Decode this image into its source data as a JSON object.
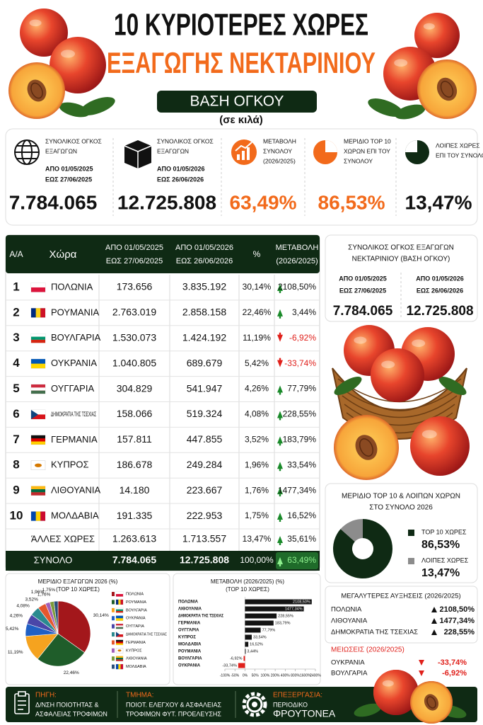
{
  "header": {
    "title_line1": "10 ΚΥΡΙΟΤΕΡΕΣ ΧΩΡΕΣ",
    "title_line2": "ΕΞΑΓΩΓΗΣ ΝΕΚΤΑΡΙΝΙΟΥ",
    "basis": "ΒΑΣΗ ΟΓΚΟΥ",
    "unit": "(σε κιλά)"
  },
  "kpis": [
    {
      "label": [
        "ΣΥΝΟΛΙΚΟΣ ΟΓΚΟΣ",
        "ΕΞΑΓΩΓΩΝ"
      ],
      "period": [
        "ΑΠΟ 01/05/2025",
        "ΕΩΣ 27/06/2025"
      ],
      "value": "7.784.065"
    },
    {
      "label": [
        "ΣΥΝΟΛΙΚΟΣ ΟΓΚΟΣ",
        "ΕΞΑΓΩΓΩΝ"
      ],
      "period": [
        "ΑΠΟ 01/05/2026",
        "ΕΩΣ 26/06/2026"
      ],
      "value": "12.725.808"
    },
    {
      "label": [
        "ΜΕΤΑΒΟΛΗ",
        "ΣΥΝΟΛΟΥ",
        "(2026/2025)"
      ],
      "value": "63,49%"
    },
    {
      "label": [
        "ΜΕΡΙΔΙΟ TOP 10",
        "ΧΩΡΩΝ ΕΠΙ ΤΟΥ",
        "ΣΥΝΟΛΟΥ"
      ],
      "value": "86,53%"
    },
    {
      "label": [
        "ΛΟΙΠΕΣ ΧΩΡΕΣ",
        "ΕΠΙ ΤΟΥ ΣΥΝΟΛΟΥ"
      ],
      "value": "13,47%"
    }
  ],
  "table": {
    "header": [
      "Α/Α",
      "Χώρα",
      [
        "ΑΠΟ 01/05/2025",
        "ΕΩΣ 27/06/2025"
      ],
      [
        "ΑΠΟ 01/05/2026",
        "ΕΩΣ 26/06/2026"
      ],
      "%",
      [
        "ΜΕΤΑΒΟΛΗ",
        "(2026/2025)"
      ]
    ],
    "rows": [
      [
        "1",
        "ΠΟΛΩΝΙΑ",
        "173.656",
        "3.835.192",
        "30,14%",
        "2108,50%"
      ],
      [
        "2",
        "ΡΟΥΜΑΝΙΑ",
        "2.763.019",
        "2.858.158",
        "22,46%",
        "3,44%"
      ],
      [
        "3",
        "ΒΟΥΛΓΑΡΙΑ",
        "1.530.073",
        "1.424.192",
        "11,19%",
        "-6,92%"
      ],
      [
        "4",
        "ΟΥΚΡΑΝΙΑ",
        "1.040.805",
        "689.679",
        "5,42%",
        "-33,74%"
      ],
      [
        "5",
        "ΟΥΓΓΑΡΙΑ",
        "304.829",
        "541.947",
        "4,26%",
        "77,79%"
      ],
      [
        "6",
        "ΔΗΜΟΚΡΑΤΙΑ ΤΗΣ ΤΣΕΧΙΑΣ",
        "158.066",
        "519.324",
        "4,08%",
        "228,55%"
      ],
      [
        "7",
        "ΓΕΡΜΑΝΙΑ",
        "157.811",
        "447.855",
        "3,52%",
        "183,79%"
      ],
      [
        "8",
        "ΚΥΠΡΟΣ",
        "186.678",
        "249.284",
        "1,96%",
        "33,54%"
      ],
      [
        "9",
        "ΛΙΘΟΥΑΝΙΑ",
        "14.180",
        "223.667",
        "1,76%",
        "1477,34%"
      ],
      [
        "10",
        "ΜΟΛΔΑΒΙΑ",
        "191.335",
        "222.953",
        "1,75%",
        "16,52%"
      ]
    ],
    "other": {
      "label": "ΆΛΛΕΣ ΧΩΡΕΣ",
      "cells": [
        "1.263.613",
        "1.713.557",
        "13,47%",
        "35,61%"
      ]
    },
    "total": {
      "label": "ΣΥΝΟΛΟ",
      "cells": [
        "7.784.065",
        "12.725.808",
        "100,00%",
        "63,49%"
      ]
    }
  },
  "summary": {
    "title": [
      "ΣΥΝΟΛΙΚΟΣ ΟΓΚΟΣ ΕΞΑΓΩΓΩΝ",
      "ΝΕΚΤΑΡΙΝΙΟΥ (ΒΑΣΗ ΟΓΚΟΥ)"
    ],
    "columns": [
      {
        "period": [
          "ΑΠΟ 01/05/2025",
          "ΕΩΣ 27/06/2025"
        ],
        "value": "7.784.065"
      },
      {
        "period": [
          "ΑΠΟ 01/05/2026",
          "ΕΩΣ 26/06/2026"
        ],
        "value": "12.725.808"
      }
    ]
  },
  "chart_data": [
    {
      "type": "pie",
      "title": [
        "ΜΕΡΙΔΙΟ ΕΞΑΓΩΓΩΝ 2026 (%)",
        "(TOP 10 ΧΩΡΕΣ)"
      ],
      "categories": [
        "ΠΟΛΩΝΙΑ",
        "ΡΟΥΜΑΝΙΑ",
        "ΒΟΥΛΓΑΡΙΑ",
        "ΟΥΚΡΑΝΙΑ",
        "ΟΥΓΓΑΡΙΑ",
        "ΔΗΜΟΚΡΑΤΙΑ ΤΗΣ ΤΣΕΧΙΑΣ",
        "ΓΕΡΜΑΝΙΑ",
        "ΚΥΠΡΟΣ",
        "ΛΙΘΟΥΑΝΙΑ",
        "ΜΟΛΔΑΒΙΑ"
      ],
      "values": [
        30.14,
        22.46,
        11.19,
        5.42,
        4.26,
        4.08,
        3.52,
        1.96,
        1.76,
        1.75
      ],
      "value_labels": [
        "30,14%",
        "22,46%",
        "11,19%",
        "5,42%",
        "4,26%",
        "4,08%",
        "3,52%",
        "1,96%",
        "1,76%",
        "1,75%"
      ],
      "colors": [
        "#a3171b",
        "#1f5d2a",
        "#f5a31f",
        "#2060c4",
        "#4a46a8",
        "#2a8b8f",
        "#e4572e",
        "#a25fb8",
        "#7c9b3a",
        "#2b4f7a"
      ]
    },
    {
      "type": "bar",
      "orientation": "horizontal",
      "title": [
        "ΜΕΤΑΒΟΛΗ (2026/2025) (%)",
        "(TOP 10 ΧΩΡΕΣ)"
      ],
      "categories": [
        "ΠΟΛΩΝΙΑ",
        "ΛΙΘΟΥΑΝΙΑ",
        "ΔΗΜΟΚΡΑΤΙΑ ΤΗΣ ΤΣΕΧΙΑΣ",
        "ΓΕΡΜΑΝΙΑ",
        "ΟΥΓΓΑΡΙΑ",
        "ΚΥΠΡΟΣ",
        "ΜΟΛΔΑΒΙΑ",
        "ΡΟΥΜΑΝΙΑ",
        "ΒΟΥΛΓΑΡΙΑ",
        "ΟΥΚΡΑΝΙΑ"
      ],
      "values": [
        2108.5,
        1477.34,
        228.55,
        183.79,
        77.79,
        33.54,
        16.52,
        3.44,
        -6.92,
        -33.74
      ],
      "value_labels": [
        "2108,50%",
        "1477,34%",
        "228,55%",
        "183,79%",
        "77,79%",
        "33,54%",
        "16,52%",
        "3,44%",
        "-6,92%",
        "-33,74%"
      ],
      "color": "#141414",
      "negative_color": "#e0201b",
      "xlim": [
        -100,
        2400
      ],
      "xticks": [
        {
          "value": -100,
          "label": "-100%"
        },
        {
          "value": -50,
          "label": "-50%"
        },
        {
          "value": 0,
          "label": "0%"
        },
        {
          "value": 50,
          "label": "50%"
        },
        {
          "value": 100,
          "label": "100%"
        },
        {
          "value": 200,
          "label": "200%"
        },
        {
          "value": 400,
          "label": "400%"
        },
        {
          "value": 800,
          "label": "800%"
        },
        {
          "value": 1600,
          "label": "1600%"
        },
        {
          "value": 2400,
          "label": "2400%"
        }
      ]
    },
    {
      "type": "donut",
      "title": [
        "ΜΕΡΙΔΙΟ TOP 10 & ΛΟΙΠΩΝ ΧΩΡΩΝ",
        "ΣΤΟ ΣΥΝΟΛΟ 2026"
      ],
      "categories": [
        "TOP 10 ΧΩΡΕΣ",
        "ΛΟΙΠΕΣ ΧΩΡΕΣ"
      ],
      "values": [
        86.53,
        13.47
      ],
      "value_labels": [
        "86,53%",
        "13,47%"
      ],
      "colors": [
        "#0f2a14",
        "#8c8c8c"
      ]
    }
  ],
  "increases": {
    "title": "ΜΕΓΑΛΥΤΕΡΕΣ ΑΥΞΗΣΕΙΣ (2026/2025)",
    "items": [
      [
        "ΠΟΛΩΝΙΑ",
        "2108,50%"
      ],
      [
        "ΛΙΘΟΥΑΝΙΑ",
        "1477,34%"
      ],
      [
        "ΔΗΜΟΚΡΑΤΙΑ ΤΗΣ ΤΣΕΧΙΑΣ",
        "228,55%"
      ]
    ]
  },
  "decreases": {
    "title": "ΜΕΙΩΣΕΙΣ (2026/2025)",
    "items": [
      [
        "ΟΥΚΡΑΝΙΑ",
        "-33,74%"
      ],
      [
        "ΒΟΥΛΓΑΡΙΑ",
        "-6,92%"
      ]
    ]
  },
  "footer": [
    {
      "label": "ΠΗΓΗ:",
      "lines": [
        "Δ/ΝΣΗ ΠΟΙΟΤΗΤΑΣ &",
        "ΑΣΦΑΛΕΙΑΣ ΤΡΟΦΙΜΩΝ"
      ]
    },
    {
      "label": "ΤΜΗΜΑ:",
      "lines": [
        "ΠΟΙΟΤ. ΕΛΕΓΧΟΥ & ΑΣΦΑΛΕΙΑΣ",
        "ΤΡΟΦΙΜΩΝ ΦΥΤ. ΠΡΟΕΛΕΥΣΗΣ"
      ]
    },
    {
      "label": "ΕΠΕΞΕΡΓΑΣΙΑ:",
      "lines": [
        "ΠΕΡΙΟΔΙΚΟ",
        "ΦΡΟΥΤΟΝΕΑ"
      ]
    }
  ]
}
